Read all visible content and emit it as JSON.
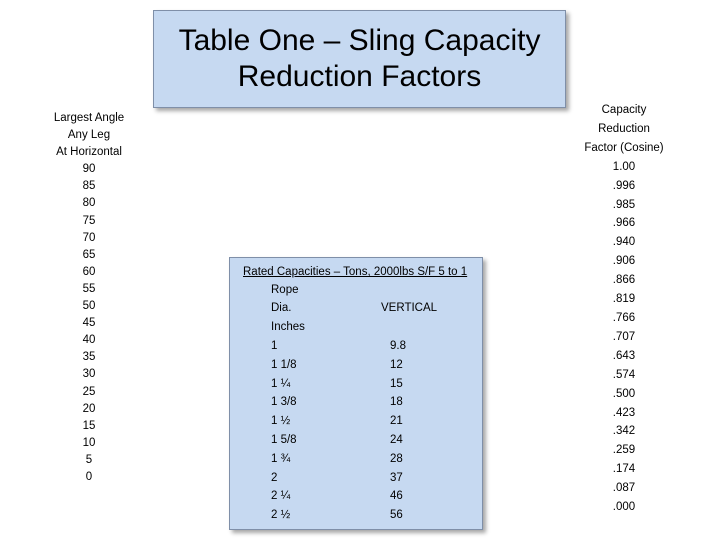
{
  "title": "Table One – Sling Capacity Reduction Factors",
  "angle_column": {
    "header": [
      "Largest Angle",
      "Any Leg",
      "At Horizontal"
    ],
    "values": [
      "90",
      "85",
      "80",
      "75",
      "70",
      "65",
      "60",
      "55",
      "50",
      "45",
      "40",
      "35",
      "30",
      "25",
      "20",
      "15",
      "10",
      "5",
      "0"
    ]
  },
  "factor_column": {
    "header": [
      "Capacity",
      "Reduction",
      "Factor (Cosine)"
    ],
    "values": [
      "1.00",
      ".996",
      ".985",
      ".966",
      ".940",
      ".906",
      ".866",
      ".819",
      ".766",
      ".707",
      ".643",
      ".574",
      ".500",
      ".423",
      ".342",
      ".259",
      ".174",
      ".087",
      ".000"
    ]
  },
  "capacity_table": {
    "title": "Rated Capacities – Tons, 2000lbs S/F 5 to 1",
    "rope_label": "Rope",
    "dia_label": "Dia.",
    "vertical_label": "VERTICAL",
    "inches_label": "Inches",
    "rows": [
      {
        "dia": "1",
        "capacity": "9.8"
      },
      {
        "dia": "1 1/8",
        "capacity": "12"
      },
      {
        "dia": "1 ¼",
        "capacity": "15"
      },
      {
        "dia": "1 3/8",
        "capacity": "18"
      },
      {
        "dia": "1 ½",
        "capacity": "21"
      },
      {
        "dia": "1 5/8",
        "capacity": "24"
      },
      {
        "dia": "1 ¾",
        "capacity": "28"
      },
      {
        "dia": "2",
        "capacity": "37"
      },
      {
        "dia": "2 ¼",
        "capacity": "46"
      },
      {
        "dia": "2 ½",
        "capacity": "56"
      }
    ]
  },
  "colors": {
    "box_fill": "#c6d9f1",
    "box_border": "#7f8fa8"
  }
}
